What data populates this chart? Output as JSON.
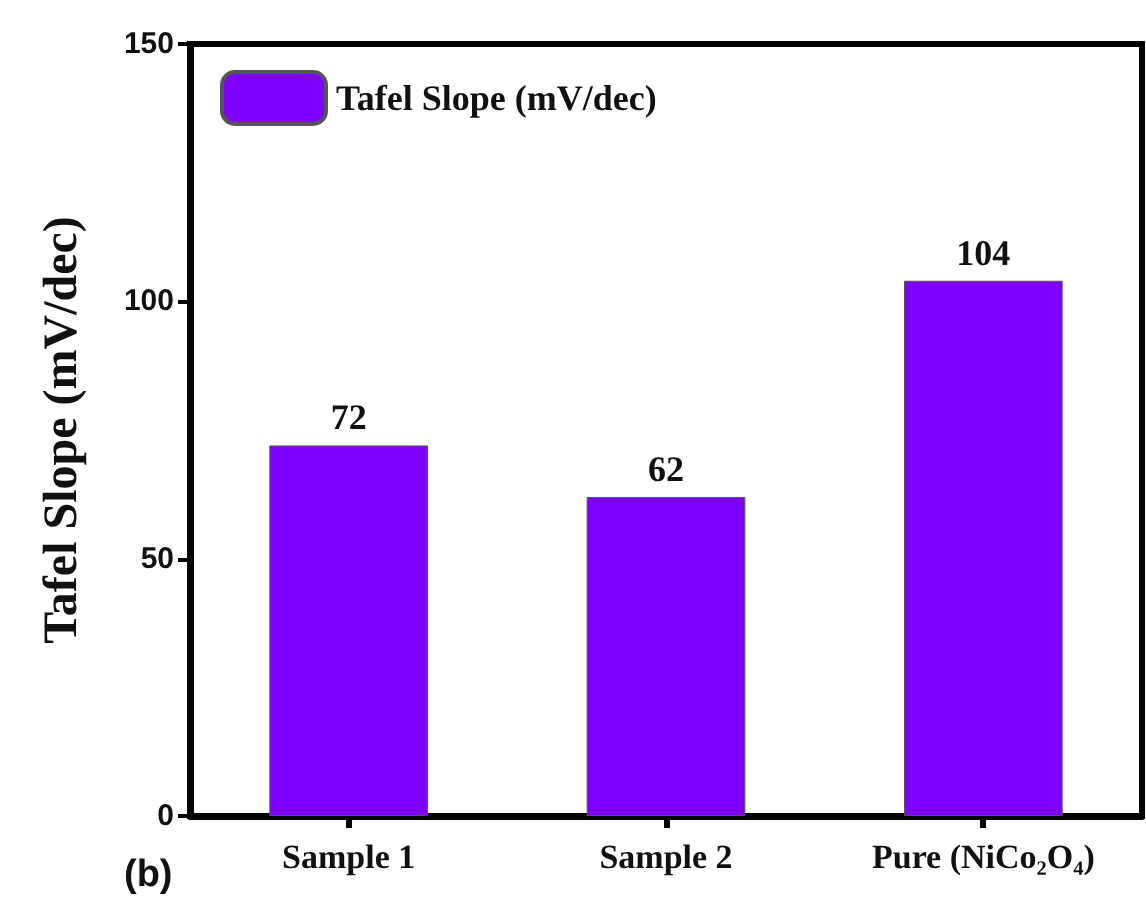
{
  "chart_data": {
    "type": "bar",
    "ylabel": "Tafel Slope (mV/dec)",
    "categories": [
      "Sample 1",
      "Sample 2",
      "Pure (NiCo₂O₄)"
    ],
    "series": [
      {
        "name": "Tafel Slope (mV/dec)",
        "color": "#8000ff",
        "values": [
          72,
          62,
          104
        ]
      }
    ],
    "ylim": [
      0,
      150
    ],
    "yticks": [
      0,
      50,
      100,
      150
    ],
    "grid": false,
    "legend": "top left",
    "data_labels": true,
    "annotations": [
      "(b)"
    ]
  }
}
